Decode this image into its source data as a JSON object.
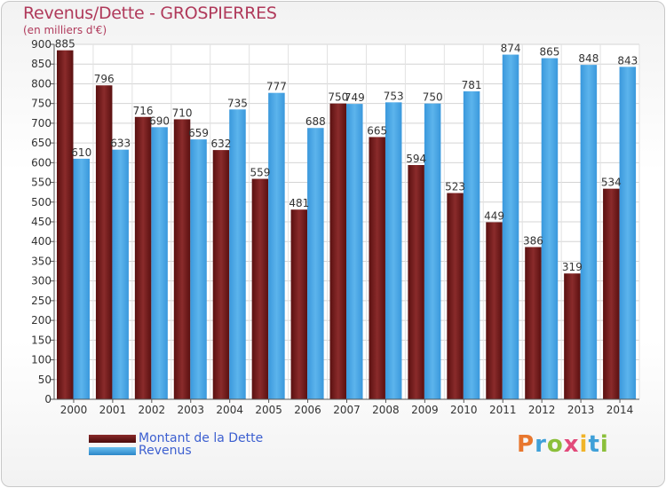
{
  "header": {
    "title": "Revenus/Dette - GROSPIERRES",
    "subtitle": "(en milliers d'€)"
  },
  "legend": [
    {
      "label": "Montant de la Dette",
      "color": "#6e1a1a"
    },
    {
      "label": "Revenus",
      "color": "#4aa8e6"
    }
  ],
  "logo": {
    "letters": [
      "P",
      "r",
      "o",
      "x",
      "i",
      "t",
      "i"
    ],
    "colors": [
      "#e8772e",
      "#3fa0d8",
      "#8bbf3a",
      "#e24a7a",
      "#f0b429",
      "#3fa0d8",
      "#8bbf3a"
    ]
  },
  "chart_data": {
    "type": "bar",
    "categories": [
      "2000",
      "2001",
      "2002",
      "2003",
      "2004",
      "2005",
      "2006",
      "2007",
      "2008",
      "2009",
      "2010",
      "2011",
      "2012",
      "2013",
      "2014"
    ],
    "series": [
      {
        "name": "Montant de la Dette",
        "values": [
          885,
          796,
          716,
          710,
          632,
          559,
          481,
          750,
          665,
          594,
          523,
          449,
          386,
          319,
          534
        ]
      },
      {
        "name": "Revenus",
        "values": [
          610,
          633,
          690,
          659,
          735,
          777,
          688,
          749,
          753,
          750,
          781,
          874,
          865,
          848,
          843
        ]
      }
    ],
    "ylim": [
      0,
      900
    ],
    "yticks": [
      0,
      50,
      100,
      150,
      200,
      250,
      300,
      350,
      400,
      450,
      500,
      550,
      600,
      650,
      700,
      750,
      800,
      850,
      900
    ],
    "grid": true,
    "legend_position": "bottom-left"
  }
}
